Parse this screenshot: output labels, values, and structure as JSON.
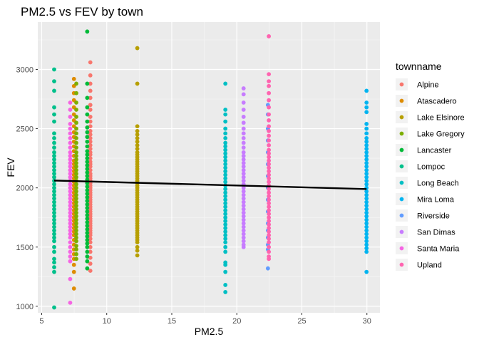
{
  "chart_data": {
    "type": "scatter",
    "title": "PM2.5 vs FEV by town",
    "xlabel": "PM2.5",
    "ylabel": "FEV",
    "xlim": [
      4.7,
      31.0
    ],
    "ylim": [
      945,
      3400
    ],
    "xticks": [
      5,
      10,
      15,
      20,
      25,
      30
    ],
    "yticks": [
      1000,
      1500,
      2000,
      2500,
      3000
    ],
    "grid": true,
    "legend": {
      "title": "townname",
      "position": "right"
    },
    "series": [
      {
        "name": "Alpine",
        "color": "#F8766D",
        "x": 8.74,
        "values": [
          3060,
          2950,
          2880,
          2820,
          2760,
          2700,
          2660,
          2600,
          2560,
          2520,
          2480,
          2450,
          2420,
          2390,
          2360,
          2330,
          2300,
          2280,
          2250,
          2220,
          2200,
          2180,
          2150,
          2120,
          2100,
          2080,
          2060,
          2040,
          2020,
          2000,
          1980,
          1960,
          1940,
          1920,
          1900,
          1880,
          1860,
          1840,
          1820,
          1800,
          1780,
          1760,
          1740,
          1720,
          1700,
          1680,
          1660,
          1640,
          1620,
          1600,
          1570,
          1540,
          1500,
          1460,
          1410,
          1360,
          1300
        ]
      },
      {
        "name": "Atascadero",
        "color": "#DE8C00",
        "x": 7.48,
        "values": [
          2920,
          2860,
          2800,
          2740,
          2680,
          2620,
          2570,
          2520,
          2470,
          2430,
          2390,
          2350,
          2310,
          2270,
          2230,
          2200,
          2170,
          2140,
          2110,
          2080,
          2050,
          2020,
          1990,
          1960,
          1930,
          1900,
          1870,
          1840,
          1810,
          1780,
          1750,
          1720,
          1690,
          1660,
          1630,
          1600,
          1560,
          1520,
          1480,
          1440,
          1400,
          1350,
          1290,
          1150
        ]
      },
      {
        "name": "Lake Elsinore",
        "color": "#B79F00",
        "x": 12.35,
        "values": [
          3180,
          2880,
          2520,
          2480,
          2450,
          2420,
          2390,
          2360,
          2330,
          2300,
          2280,
          2260,
          2240,
          2220,
          2200,
          2180,
          2160,
          2140,
          2120,
          2100,
          2080,
          2060,
          2040,
          2020,
          2000,
          1980,
          1960,
          1940,
          1920,
          1900,
          1880,
          1860,
          1840,
          1820,
          1800,
          1780,
          1760,
          1740,
          1720,
          1700,
          1680,
          1660,
          1640,
          1620,
          1600,
          1580,
          1560,
          1540,
          1500,
          1470,
          1430
        ]
      },
      {
        "name": "Lake Gregory",
        "color": "#7CAE00",
        "x": 7.66,
        "values": [
          2880,
          2800,
          2720,
          2660,
          2600,
          2550,
          2500,
          2460,
          2420,
          2380,
          2340,
          2300,
          2270,
          2240,
          2210,
          2180,
          2150,
          2120,
          2090,
          2060,
          2030,
          2000,
          1970,
          1940,
          1910,
          1880,
          1850,
          1820,
          1790,
          1760,
          1730,
          1700,
          1670,
          1640,
          1610,
          1580,
          1550,
          1510,
          1480,
          1440,
          1400
        ]
      },
      {
        "name": "Lancaster",
        "color": "#00BA38",
        "x": 8.5,
        "values": [
          3320,
          2880,
          2760,
          2680,
          2620,
          2560,
          2510,
          2470,
          2430,
          2390,
          2350,
          2310,
          2280,
          2250,
          2220,
          2190,
          2160,
          2130,
          2100,
          2070,
          2040,
          2010,
          1980,
          1950,
          1920,
          1890,
          1860,
          1830,
          1800,
          1770,
          1740,
          1710,
          1680,
          1650,
          1620,
          1590,
          1560,
          1530,
          1500,
          1460,
          1420,
          1380,
          1320
        ]
      },
      {
        "name": "Lompoc",
        "color": "#00C08B",
        "x": 5.96,
        "values": [
          3000,
          2900,
          2820,
          2680,
          2620,
          2560,
          2460,
          2420,
          2380,
          2340,
          2300,
          2270,
          2240,
          2210,
          2180,
          2150,
          2120,
          2090,
          2060,
          2030,
          2000,
          1970,
          1940,
          1910,
          1880,
          1850,
          1820,
          1790,
          1760,
          1730,
          1700,
          1670,
          1640,
          1610,
          1580,
          1550,
          1500,
          1460,
          1400,
          1370,
          1330,
          1290,
          990
        ]
      },
      {
        "name": "Long Beach",
        "color": "#00BFC4",
        "x": 19.12,
        "values": [
          2880,
          2660,
          2620,
          2560,
          2500,
          2460,
          2420,
          2380,
          2350,
          2320,
          2290,
          2260,
          2230,
          2200,
          2170,
          2140,
          2110,
          2080,
          2050,
          2020,
          1990,
          1960,
          1930,
          1900,
          1870,
          1840,
          1810,
          1780,
          1750,
          1720,
          1690,
          1660,
          1630,
          1600,
          1570,
          1540,
          1500,
          1460,
          1370,
          1350,
          1290,
          1180,
          1120
        ]
      },
      {
        "name": "Mira Loma",
        "color": "#00B4F0",
        "x": 29.97,
        "values": [
          2820,
          2720,
          2680,
          2640,
          2540,
          2500,
          2460,
          2420,
          2390,
          2360,
          2330,
          2300,
          2270,
          2240,
          2210,
          2180,
          2150,
          2120,
          2090,
          2060,
          2030,
          2000,
          1970,
          1940,
          1910,
          1880,
          1850,
          1820,
          1790,
          1760,
          1730,
          1700,
          1670,
          1640,
          1610,
          1580,
          1550,
          1520,
          1490,
          1460,
          1290
        ]
      },
      {
        "name": "Riverside",
        "color": "#619CFF",
        "x": 22.39,
        "values": [
          2700,
          2620,
          2500,
          2400,
          2300,
          2200,
          2100,
          2000,
          1900,
          1800,
          1700,
          1640,
          1580,
          1520,
          1480,
          1320
        ]
      },
      {
        "name": "San Dimas",
        "color": "#C77CFF",
        "x": 20.52,
        "values": [
          2840,
          2790,
          2720,
          2660,
          2600,
          2550,
          2500,
          2460,
          2420,
          2380,
          2340,
          2300,
          2270,
          2240,
          2210,
          2180,
          2150,
          2120,
          2090,
          2060,
          2030,
          2000,
          1970,
          1940,
          1910,
          1880,
          1850,
          1820,
          1790,
          1760,
          1730,
          1700,
          1670,
          1640,
          1610,
          1580,
          1550,
          1520,
          1500
        ]
      },
      {
        "name": "Santa Maria",
        "color": "#F564E3",
        "x": 7.19,
        "values": [
          2720,
          2660,
          2600,
          2540,
          2500,
          2460,
          2420,
          2380,
          2340,
          2300,
          2270,
          2240,
          2210,
          2180,
          2150,
          2120,
          2090,
          2060,
          2030,
          2000,
          1970,
          1940,
          1910,
          1880,
          1850,
          1820,
          1790,
          1760,
          1730,
          1700,
          1670,
          1640,
          1610,
          1580,
          1540,
          1500,
          1460,
          1420,
          1380,
          1230,
          1030
        ]
      },
      {
        "name": "Upland",
        "color": "#FF64B0",
        "x": 22.46,
        "values": [
          3280,
          2960,
          2900,
          2860,
          2800,
          2740,
          2680,
          2620,
          2570,
          2520,
          2480,
          2440,
          2400,
          2360,
          2320,
          2290,
          2260,
          2230,
          2200,
          2170,
          2140,
          2110,
          2080,
          2050,
          2020,
          1990,
          1960,
          1930,
          1900,
          1870,
          1840,
          1810,
          1780,
          1750,
          1720,
          1690,
          1660,
          1630,
          1600,
          1570,
          1540,
          1500,
          1460,
          1420,
          1400
        ]
      }
    ],
    "trendline": {
      "color": "#000000",
      "x": [
        5.96,
        29.97
      ],
      "y": [
        2062,
        1990
      ]
    }
  }
}
